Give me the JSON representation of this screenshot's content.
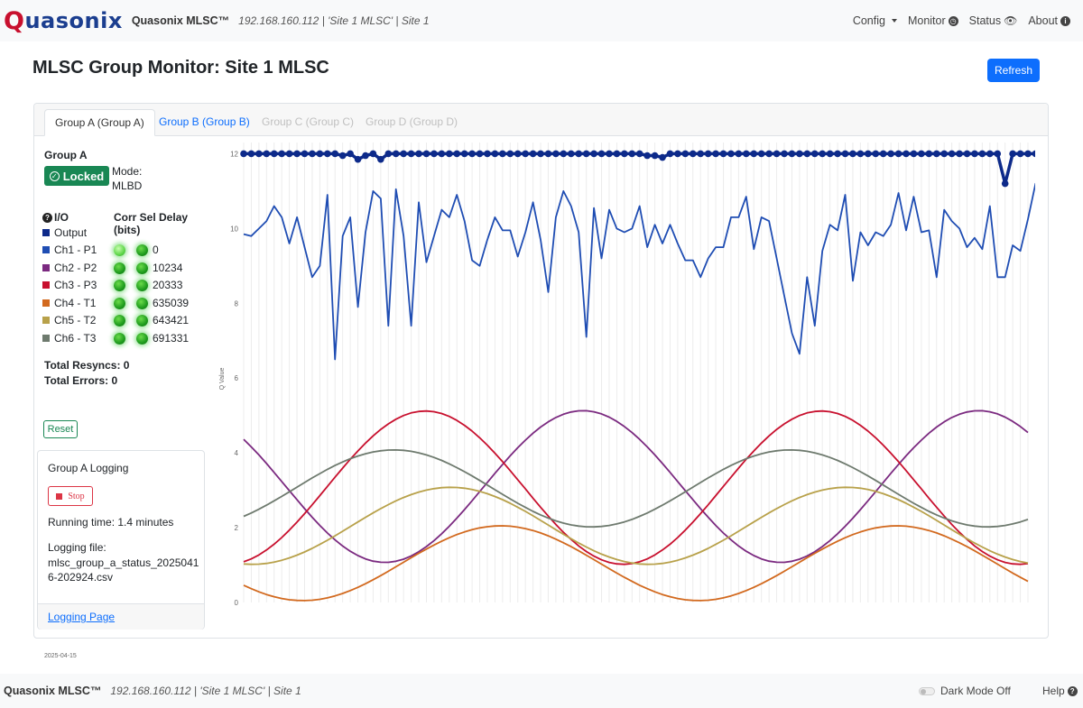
{
  "nav": {
    "logo": "Quasonix",
    "title": "Quasonix MLSC™",
    "subtitle": "192.168.160.112 | 'Site 1 MLSC' | Site 1",
    "items": [
      {
        "label": "Config"
      },
      {
        "label": "Monitor"
      },
      {
        "label": "Status"
      },
      {
        "label": "About"
      }
    ]
  },
  "page": {
    "title": "MLSC Group Monitor: Site 1 MLSC",
    "refresh_label": "Refresh"
  },
  "tabs": [
    {
      "label": "Group A (Group A)",
      "state": "active"
    },
    {
      "label": "Group B (Group B)",
      "state": "enabled"
    },
    {
      "label": "Group C (Group C)",
      "state": "disabled"
    },
    {
      "label": "Group D (Group D)",
      "state": "disabled"
    }
  ],
  "group": {
    "name": "Group A",
    "status": "Locked",
    "mode_label": "Mode:",
    "mode_value": "MLBD",
    "io_header": "I/O",
    "corr_header": "Corr Sel Delay (bits)",
    "channels": [
      {
        "label": "Output",
        "color": "#0d2a8a"
      },
      {
        "label": "Ch1 - P1",
        "color": "#1f4db3",
        "delay": "0"
      },
      {
        "label": "Ch2 - P2",
        "color": "#7b2a80",
        "delay": "10234"
      },
      {
        "label": "Ch3 - P3",
        "color": "#c8102e",
        "delay": "20333"
      },
      {
        "label": "Ch4 - T1",
        "color": "#d2691e",
        "delay": "635039"
      },
      {
        "label": "Ch5 - T2",
        "color": "#b8a14a",
        "delay": "643421"
      },
      {
        "label": "Ch6 - T3",
        "color": "#6e7a6e",
        "delay": "691331"
      }
    ],
    "total_resyncs": "Total Resyncs: 0",
    "total_errors": "Total Errors: 0",
    "reset_label": "Reset"
  },
  "logging": {
    "title": "Group A Logging",
    "stop_label": "Stop",
    "running_time": "Running time: 1.4 minutes",
    "file_label": "Logging file:",
    "file_name": "mlsc_group_a_status_20250416-202924.csv",
    "link_label": "Logging Page"
  },
  "date_label": "2025-04-15",
  "footer": {
    "brand": "Quasonix MLSC™",
    "subtitle": "192.168.160.112 | 'Site 1 MLSC' | Site 1",
    "dark_mode": "Dark Mode Off",
    "help": "Help"
  },
  "chart_data": {
    "type": "line",
    "ylabel": "Q Value",
    "ylim": [
      0,
      12.3
    ],
    "yticks": [
      0,
      2,
      4,
      6,
      8,
      10,
      12
    ],
    "grid": "vertical",
    "series": [
      {
        "name": "Output",
        "color": "#0d2a8a",
        "width": 3.5,
        "marker": true,
        "values": [
          12,
          12,
          12,
          12,
          12,
          12,
          12,
          12,
          12,
          12,
          12,
          12,
          12,
          11.95,
          12,
          11.85,
          11.95,
          12,
          11.85,
          12,
          12,
          12,
          12,
          12,
          12,
          12,
          12,
          12,
          12,
          12,
          12,
          12,
          12,
          12,
          12,
          12,
          12,
          12,
          12,
          12,
          12,
          12,
          12,
          12,
          12,
          12,
          12,
          12,
          12,
          12,
          12,
          12,
          12,
          11.95,
          11.95,
          11.9,
          12,
          12,
          12,
          12,
          12,
          12,
          12,
          12,
          12,
          12,
          12,
          12,
          12,
          12,
          12,
          12,
          12,
          12,
          12,
          12,
          12,
          12,
          12,
          12,
          12,
          12,
          12,
          12,
          12,
          12,
          12,
          12,
          12,
          12,
          12,
          12,
          12,
          12,
          12,
          12,
          12,
          12,
          12,
          12,
          11.2,
          12,
          12,
          12,
          12,
          12,
          12,
          12,
          12,
          12,
          12,
          12,
          12,
          12,
          12,
          12
        ]
      },
      {
        "name": "Ch1 - P1",
        "color": "#1f4db3",
        "width": 1.8,
        "values": [
          9.85,
          9.8,
          10,
          10.2,
          10.6,
          10.3,
          9.6,
          10.3,
          9.5,
          8.7,
          9,
          10.9,
          6.5,
          9.8,
          10.3,
          7.9,
          9.9,
          11,
          10.8,
          7.4,
          11.05,
          9.8,
          7.4,
          10.7,
          9.1,
          9.8,
          10.5,
          10.3,
          10.9,
          10.2,
          9.15,
          9,
          9.7,
          10.3,
          9.95,
          9.95,
          9.25,
          9.9,
          10.7,
          9.7,
          8.3,
          10.3,
          11,
          10.6,
          9.9,
          7.1,
          10.55,
          9.2,
          10.5,
          10,
          9.9,
          10,
          10.6,
          9.5,
          10.1,
          9.6,
          10.1,
          9.6,
          9.15,
          9.15,
          8.7,
          9.2,
          9.5,
          9.5,
          10.3,
          10.3,
          10.85,
          9.45,
          10.3,
          10.2,
          9.2,
          8.2,
          7.2,
          6.65,
          8.7,
          7.4,
          9.4,
          10.1,
          9.95,
          10.9,
          8.6,
          9.9,
          9.55,
          9.9,
          9.8,
          10.1,
          10.95,
          9.95,
          10.85,
          9.9,
          9.95,
          8.7,
          10.5,
          10.2,
          10,
          9.5,
          9.75,
          9.45,
          10.6,
          8.7,
          8.7,
          9.55,
          9.4,
          10.25,
          11.2,
          11
        ]
      },
      {
        "name": "Ch2 - P2",
        "color": "#7b2a80",
        "width": 1.8,
        "wave": {
          "mid": 3.1,
          "amp": 2.03,
          "period": 52,
          "phase": 0.9
        }
      },
      {
        "name": "Ch3 - P3",
        "color": "#c8102e",
        "width": 1.8,
        "wave": {
          "mid": 3.07,
          "amp": 2.05,
          "period": 52,
          "phase": 3.4
        }
      },
      {
        "name": "Ch4 - T1",
        "color": "#d2691e",
        "width": 1.8,
        "wave": {
          "mid": 1.05,
          "amp": 1.0,
          "period": 52,
          "phase": 2.2
        }
      },
      {
        "name": "Ch5 - T2",
        "color": "#b8a14a",
        "width": 1.8,
        "wave": {
          "mid": 2.05,
          "amp": 1.03,
          "period": 52,
          "phase": 3.0
        }
      },
      {
        "name": "Ch6 - T3",
        "color": "#6e7a6e",
        "width": 1.8,
        "wave": {
          "mid": 3.05,
          "amp": 1.03,
          "period": 52,
          "phase": 3.9
        }
      }
    ]
  }
}
